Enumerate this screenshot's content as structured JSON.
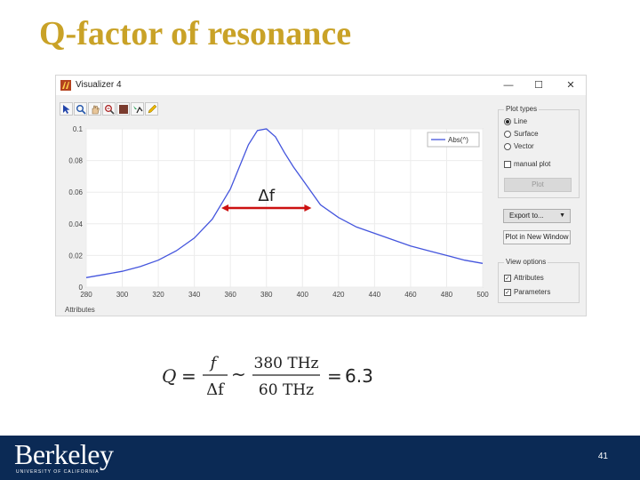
{
  "slide": {
    "title": "Q-factor of resonance",
    "page_number": "41",
    "logo_text": "Berkeley",
    "logo_subtitle": "UNIVERSITY OF CALIFORNIA"
  },
  "window": {
    "title": "Visualizer 4",
    "buttons": {
      "minimize": "—",
      "maximize": "☐",
      "close": "✕"
    },
    "toolbar_icons": [
      "pointer-icon",
      "zoom-icon",
      "pan-icon",
      "zoom-in-icon",
      "grid-icon",
      "axis-icon",
      "edit-icon"
    ]
  },
  "plot_panel": {
    "legend": "Plot types",
    "options": [
      {
        "label": "Line",
        "selected": true
      },
      {
        "label": "Surface",
        "selected": false
      },
      {
        "label": "Vector",
        "selected": false
      }
    ],
    "manual_plot_label": "manual plot",
    "plot_button": "Plot"
  },
  "export": {
    "export_button": "Export to...",
    "plot_new_window": "Plot in New Window"
  },
  "view_options": {
    "legend": "View options",
    "attributes": "Attributes",
    "parameters": "Parameters"
  },
  "attributes_tab": "Attributes",
  "annotation": {
    "delta_f": "Δf"
  },
  "formula": {
    "Q": "Q",
    "equals1": "=",
    "f": "f",
    "delta_f": "Δf",
    "sim": "~",
    "num": "380 THz",
    "den": "60 THz",
    "equals2": "=",
    "result": "6.3"
  },
  "chart_data": {
    "type": "line",
    "title": "",
    "xlabel": "",
    "ylabel": "",
    "xlim": [
      280,
      500
    ],
    "ylim": [
      0,
      0.1
    ],
    "x_ticks": [
      "280",
      "300",
      "320",
      "340",
      "360",
      "380",
      "400",
      "420",
      "440",
      "460",
      "480",
      "500"
    ],
    "y_ticks": [
      "0",
      "0.02",
      "0.04",
      "0.06",
      "0.08",
      "0.1"
    ],
    "legend_position": "top-right",
    "series": [
      {
        "name": "Abs(^)",
        "color": "#4455dd",
        "x": [
          280,
          290,
          300,
          310,
          320,
          330,
          340,
          350,
          360,
          365,
          370,
          375,
          380,
          385,
          390,
          395,
          400,
          410,
          420,
          430,
          440,
          450,
          460,
          470,
          480,
          490,
          500
        ],
        "y": [
          0.006,
          0.008,
          0.01,
          0.013,
          0.017,
          0.023,
          0.031,
          0.043,
          0.062,
          0.076,
          0.09,
          0.099,
          0.1,
          0.095,
          0.085,
          0.076,
          0.068,
          0.052,
          0.044,
          0.038,
          0.034,
          0.03,
          0.026,
          0.023,
          0.02,
          0.017,
          0.015
        ]
      }
    ],
    "annotation_arrow": {
      "x_start": 355,
      "x_end": 405,
      "y": 0.05,
      "color": "#cc1111"
    }
  }
}
